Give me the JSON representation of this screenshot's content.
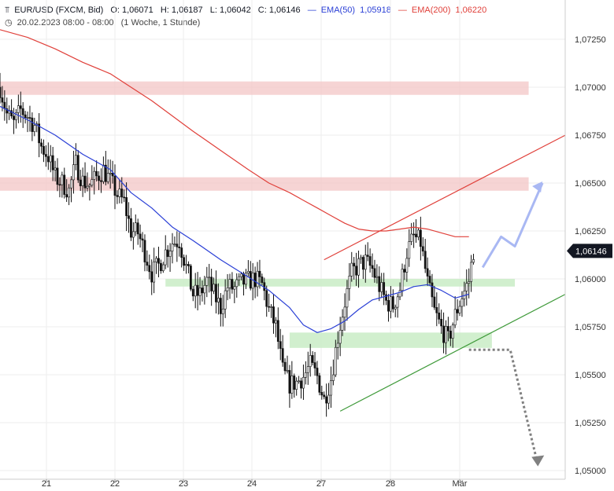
{
  "header": {
    "symbol": "EUR/USD (FXCM, Bid)",
    "open": "O: 1,06071",
    "high": "H: 1,06187",
    "low": "L: 1,06042",
    "close": "C: 1,06146",
    "ema50_label": "EMA(50)",
    "ema50_value": "1,05918",
    "ema200_label": "EMA(200)",
    "ema200_value": "1,06220",
    "date_range": "20.02.2023 08:00 - 08:00",
    "period": "(1 Woche, 1 Stunde)"
  },
  "colors": {
    "ema50": "#2a3fd6",
    "ema200": "#e0403a",
    "resistance_zone": "#f3c6c6",
    "support_zone": "#c9ecc6",
    "channel_top": "#e0403a",
    "channel_bottom": "#3f9a3a",
    "bull_arrow": "#a9b8f3",
    "bear_arrow": "#808080",
    "candle": "#111111",
    "price_badge": "#131722"
  },
  "chart_data": {
    "type": "candlestick",
    "x_ticks": [
      "21",
      "22",
      "23",
      "24",
      "27",
      "28",
      "Mär"
    ],
    "y_ticks": [
      "1,07250",
      "1,07000",
      "1,06750",
      "1,06500",
      "1,06250",
      "1,06000",
      "1,05750",
      "1,05500",
      "1,05250",
      "1,05000"
    ],
    "ylim": [
      1.0497,
      1.0738
    ],
    "last_price": "1,06146",
    "close_path": [
      [
        0,
        1.07
      ],
      [
        3,
        1.0686
      ],
      [
        6,
        1.0681
      ],
      [
        9,
        1.0688
      ],
      [
        12,
        1.0685
      ],
      [
        15,
        1.068
      ],
      [
        18,
        1.0669
      ],
      [
        21,
        1.0664
      ],
      [
        24,
        1.0653
      ],
      [
        27,
        1.065
      ],
      [
        30,
        1.0646
      ],
      [
        33,
        1.066
      ],
      [
        36,
        1.0651
      ],
      [
        39,
        1.0649
      ],
      [
        42,
        1.0653
      ],
      [
        45,
        1.0657
      ],
      [
        48,
        1.0651
      ],
      [
        51,
        1.0644
      ],
      [
        54,
        1.064
      ],
      [
        57,
        1.0625
      ],
      [
        60,
        1.0624
      ],
      [
        63,
        1.0614
      ],
      [
        66,
        1.0603
      ],
      [
        69,
        1.0607
      ],
      [
        72,
        1.0614
      ],
      [
        75,
        1.0619
      ],
      [
        78,
        1.062
      ],
      [
        81,
        1.0606
      ],
      [
        84,
        1.0592
      ],
      [
        87,
        1.0592
      ],
      [
        90,
        1.0599
      ],
      [
        93,
        1.0592
      ],
      [
        96,
        1.0585
      ],
      [
        99,
        1.0596
      ],
      [
        102,
        1.0595
      ],
      [
        105,
        1.0598
      ],
      [
        108,
        1.0599
      ],
      [
        111,
        1.06
      ],
      [
        114,
        1.0597
      ],
      [
        117,
        1.0584
      ],
      [
        120,
        1.0575
      ],
      [
        123,
        1.0552
      ],
      [
        126,
        1.0545
      ],
      [
        129,
        1.0546
      ],
      [
        132,
        1.0549
      ],
      [
        135,
        1.0555
      ],
      [
        138,
        1.0549
      ],
      [
        141,
        1.0537
      ],
      [
        144,
        1.0548
      ],
      [
        147,
        1.057
      ],
      [
        150,
        1.0588
      ],
      [
        153,
        1.0603
      ],
      [
        156,
        1.0607
      ],
      [
        159,
        1.0609
      ],
      [
        162,
        1.0605
      ],
      [
        165,
        1.0596
      ],
      [
        168,
        1.0588
      ],
      [
        171,
        1.0586
      ],
      [
        174,
        1.0595
      ],
      [
        177,
        1.0614
      ],
      [
        180,
        1.0622
      ],
      [
        183,
        1.0619
      ],
      [
        186,
        1.0598
      ],
      [
        189,
        1.0583
      ],
      [
        192,
        1.0574
      ],
      [
        195,
        1.0568
      ],
      [
        198,
        1.0581
      ],
      [
        201,
        1.0591
      ],
      [
        204,
        1.0599
      ],
      [
        206,
        1.0615
      ]
    ],
    "ema50": [
      [
        0,
        1.069
      ],
      [
        12,
        1.0683
      ],
      [
        24,
        1.0675
      ],
      [
        36,
        1.0665
      ],
      [
        48,
        1.0657
      ],
      [
        57,
        1.0645
      ],
      [
        66,
        1.0637
      ],
      [
        75,
        1.0627
      ],
      [
        84,
        1.062
      ],
      [
        96,
        1.061
      ],
      [
        108,
        1.0601
      ],
      [
        117,
        1.0594
      ],
      [
        126,
        1.0585
      ],
      [
        132,
        1.0576
      ],
      [
        138,
        1.0572
      ],
      [
        144,
        1.0574
      ],
      [
        150,
        1.0578
      ],
      [
        156,
        1.0584
      ],
      [
        162,
        1.0589
      ],
      [
        168,
        1.0591
      ],
      [
        174,
        1.0593
      ],
      [
        180,
        1.0596
      ],
      [
        186,
        1.0597
      ],
      [
        192,
        1.0594
      ],
      [
        198,
        1.059
      ],
      [
        204,
        1.0592
      ]
    ],
    "ema200": [
      [
        0,
        1.073
      ],
      [
        12,
        1.0726
      ],
      [
        24,
        1.072
      ],
      [
        36,
        1.0713
      ],
      [
        48,
        1.0707
      ],
      [
        57,
        1.07
      ],
      [
        66,
        1.0693
      ],
      [
        75,
        1.0685
      ],
      [
        84,
        1.0677
      ],
      [
        96,
        1.0667
      ],
      [
        108,
        1.0657
      ],
      [
        117,
        1.065
      ],
      [
        126,
        1.0645
      ],
      [
        132,
        1.0641
      ],
      [
        138,
        1.0637
      ],
      [
        144,
        1.0633
      ],
      [
        150,
        1.0629
      ],
      [
        156,
        1.0626
      ],
      [
        162,
        1.0625
      ],
      [
        168,
        1.0625
      ],
      [
        174,
        1.0626
      ],
      [
        180,
        1.0627
      ],
      [
        186,
        1.0626
      ],
      [
        192,
        1.0624
      ],
      [
        198,
        1.0622
      ],
      [
        204,
        1.0622
      ]
    ],
    "resistance_zones": [
      {
        "x": [
          0,
          230
        ],
        "y": [
          1.0696,
          1.0703
        ]
      },
      {
        "x": [
          0,
          230
        ],
        "y": [
          1.0646,
          1.0653
        ]
      }
    ],
    "support_zones": [
      {
        "x": [
          72,
          224
        ],
        "y": [
          1.0596,
          1.06
        ]
      },
      {
        "x": [
          126,
          214
        ],
        "y": [
          1.0564,
          1.0572
        ]
      }
    ],
    "channel_top": [
      [
        141,
        1.061
      ],
      [
        246,
        1.0675
      ]
    ],
    "channel_bottom": [
      [
        148,
        1.0531
      ],
      [
        246,
        1.0592
      ]
    ],
    "bull_scenario": [
      [
        210,
        1.0606
      ],
      [
        218,
        1.0622
      ],
      [
        224,
        1.0617
      ],
      [
        236,
        1.065
      ]
    ],
    "bear_scenario": [
      [
        204,
        1.0563
      ],
      [
        222,
        1.0563
      ],
      [
        234,
        1.0503
      ]
    ]
  }
}
